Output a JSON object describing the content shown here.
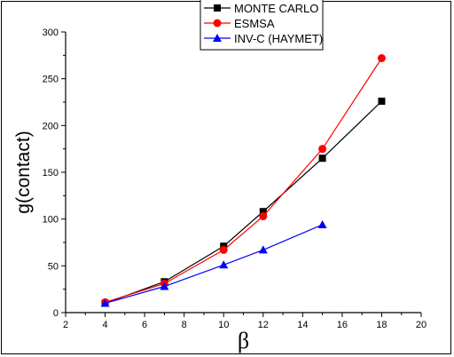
{
  "chart_data": {
    "type": "line",
    "xlabel": "β",
    "ylabel": "g(contact)",
    "xlim": [
      2,
      20
    ],
    "ylim": [
      0,
      300
    ],
    "xticks": [
      2,
      4,
      6,
      8,
      10,
      12,
      14,
      16,
      18,
      20
    ],
    "yticks": [
      0,
      50,
      100,
      150,
      200,
      250,
      300
    ],
    "legend_position": "top",
    "grid": false,
    "series": [
      {
        "name": "MONTE CARLO",
        "color": "#000000",
        "marker": "square",
        "x": [
          4,
          7,
          10,
          12,
          15,
          18
        ],
        "y": [
          10,
          33,
          71,
          108,
          165,
          226
        ]
      },
      {
        "name": "ESMSA",
        "color": "#ff0000",
        "marker": "circle",
        "x": [
          4,
          7,
          10,
          12,
          15,
          18
        ],
        "y": [
          11,
          31,
          67,
          103,
          175,
          272
        ]
      },
      {
        "name": "INV-C (HAYMET)",
        "color": "#0000ff",
        "marker": "triangle",
        "x": [
          4,
          7,
          10,
          12,
          15
        ],
        "y": [
          10,
          28,
          51,
          67,
          94
        ]
      }
    ]
  }
}
